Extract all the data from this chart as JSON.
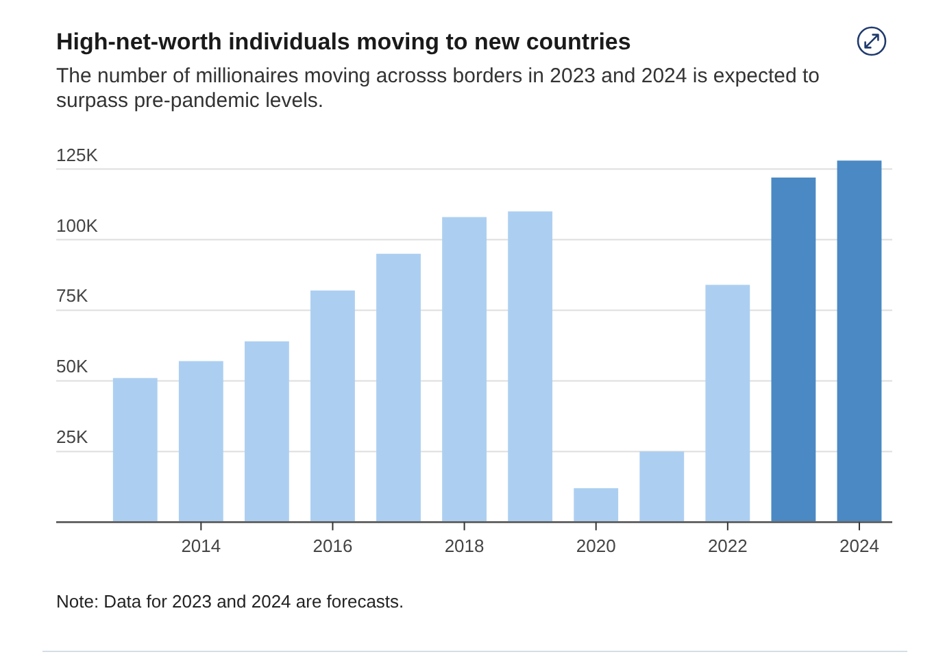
{
  "chart_data": {
    "type": "bar",
    "title": "High-net-worth individuals moving to new countries",
    "subtitle": "The number of millionaires moving acrosss borders in 2023 and 2024 is expected to surpass pre-pandemic levels.",
    "x": [
      2013,
      2014,
      2015,
      2016,
      2017,
      2018,
      2019,
      2020,
      2021,
      2022,
      2023,
      2024
    ],
    "values": [
      51000,
      57000,
      64000,
      82000,
      95000,
      108000,
      110000,
      12000,
      25000,
      84000,
      122000,
      128000
    ],
    "colors": [
      "#accff1",
      "#accff1",
      "#accff1",
      "#accff1",
      "#accff1",
      "#accff1",
      "#accff1",
      "#accff1",
      "#accff1",
      "#accff1",
      "#4a89c4",
      "#4a89c4"
    ],
    "xlim": [
      2011.8,
      2024.5
    ],
    "xticks": [
      2014,
      2016,
      2018,
      2020,
      2022,
      2024
    ],
    "ylim": [
      0,
      128000
    ],
    "yticks": [
      {
        "value": 25000,
        "label": "25K"
      },
      {
        "value": 50000,
        "label": "50K"
      },
      {
        "value": 75000,
        "label": "75K"
      },
      {
        "value": 100000,
        "label": "100K"
      },
      {
        "value": 125000,
        "label": "125K"
      }
    ],
    "grid": "y",
    "annotations": [
      "Note: Data for 2023 and 2024 are forecasts."
    ]
  }
}
